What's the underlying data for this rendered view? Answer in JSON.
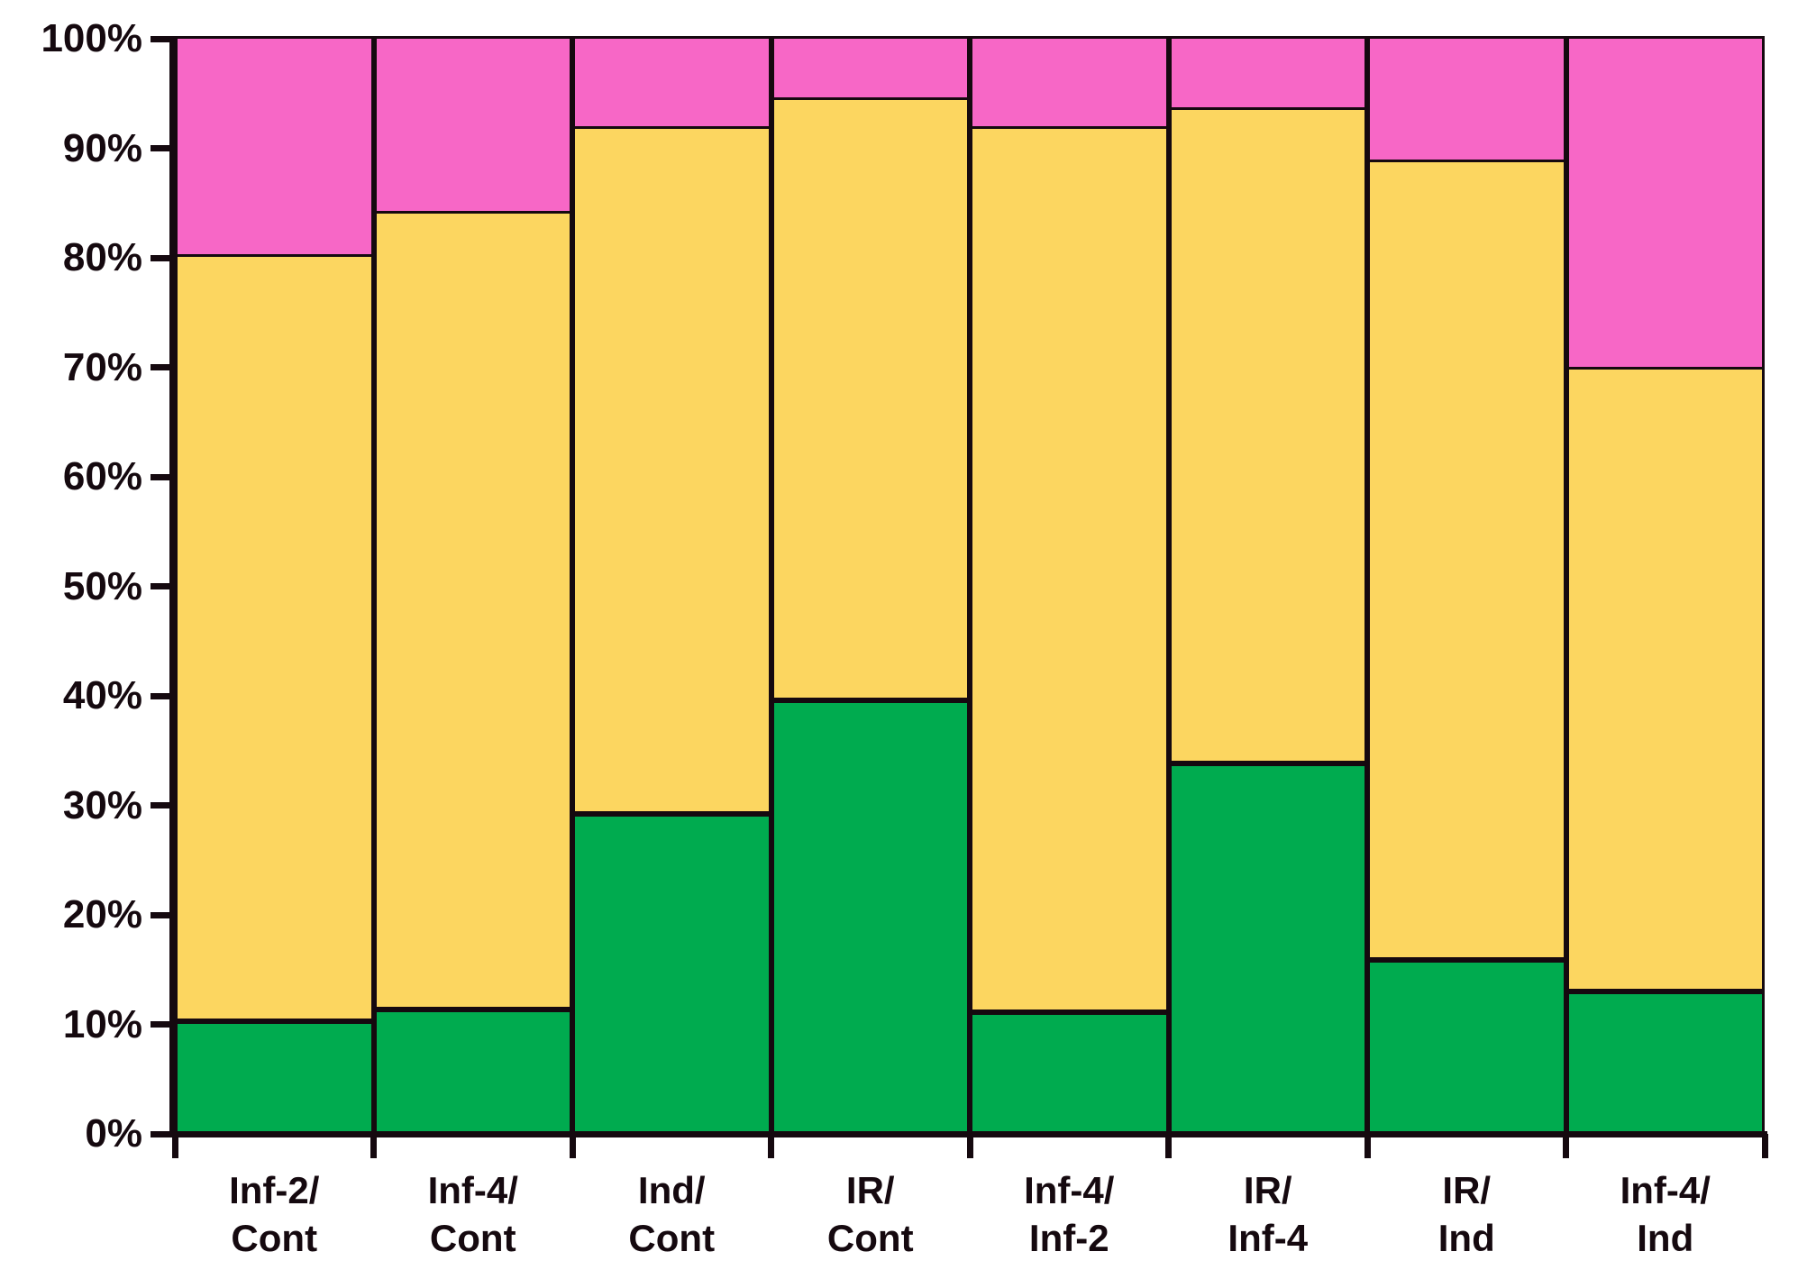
{
  "chart_data": {
    "type": "bar",
    "stacked": true,
    "percent_scale": true,
    "title": "",
    "xlabel": "",
    "ylabel": "",
    "ylim": [
      0,
      100
    ],
    "grid": false,
    "legend": false,
    "y_tick_labels": [
      "100%",
      "90%",
      "80%",
      "70%",
      "60%",
      "50%",
      "40%",
      "30%",
      "20%",
      "10%",
      "0%"
    ],
    "y_tick_values": [
      100,
      90,
      80,
      70,
      60,
      50,
      40,
      30,
      20,
      10,
      0
    ],
    "categories": [
      "Inf-2/\nCont",
      "Inf-4/\nCont",
      "Ind/\nCont",
      "IR/\nCont",
      "Inf-4/\nInf-2",
      "IR/\nInf-4",
      "IR/\nInd",
      "Inf-4/\nInd"
    ],
    "series": [
      {
        "name": "bottom-green-segment",
        "color": "#00AB4F",
        "values": [
          10.3,
          11.4,
          29.2,
          39.6,
          11.1,
          33.8,
          15.9,
          13.0
        ]
      },
      {
        "name": "middle-yellow-segment",
        "color": "#FCD660",
        "values": [
          69.8,
          72.6,
          62.6,
          54.8,
          80.7,
          59.7,
          72.8,
          56.8
        ]
      },
      {
        "name": "top-pink-segment",
        "color": "#F767C6",
        "values": [
          19.9,
          16.0,
          8.2,
          5.6,
          8.2,
          6.5,
          11.3,
          30.2
        ]
      }
    ],
    "segment_border_color": "#15090f",
    "axis_color": "#15090f"
  }
}
